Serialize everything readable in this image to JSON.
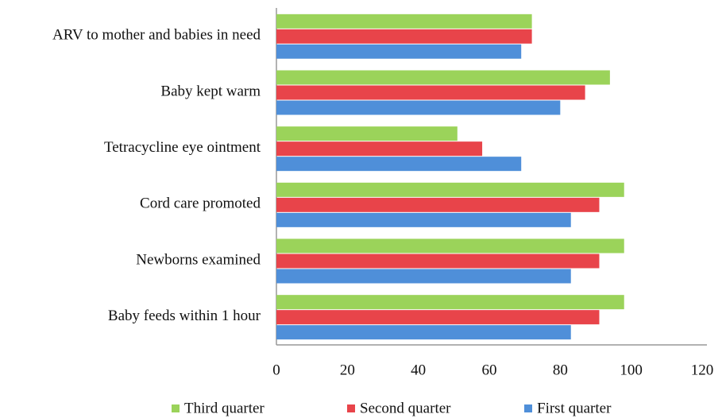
{
  "chart_data": {
    "type": "hbar",
    "categories": [
      "ARV to mother and babies in need",
      "Baby kept warm",
      "Tetracycline eye ointment",
      "Cord care promoted",
      "Newborns examined",
      "Baby feeds within 1 hour"
    ],
    "series": [
      {
        "name": "First quarter",
        "color": "#4f8fd9",
        "values": [
          69,
          80,
          69,
          83,
          83,
          83
        ]
      },
      {
        "name": "Second quarter",
        "color": "#e8444a",
        "values": [
          72,
          87,
          58,
          91,
          91,
          91
        ]
      },
      {
        "name": "Third quarter",
        "color": "#9bd35a",
        "values": [
          72,
          94,
          51,
          98,
          98,
          98
        ]
      }
    ],
    "xlim": [
      0,
      120
    ],
    "xticks": [
      0,
      20,
      40,
      60,
      80,
      100,
      120
    ],
    "grid": false,
    "legend": "bottom"
  }
}
